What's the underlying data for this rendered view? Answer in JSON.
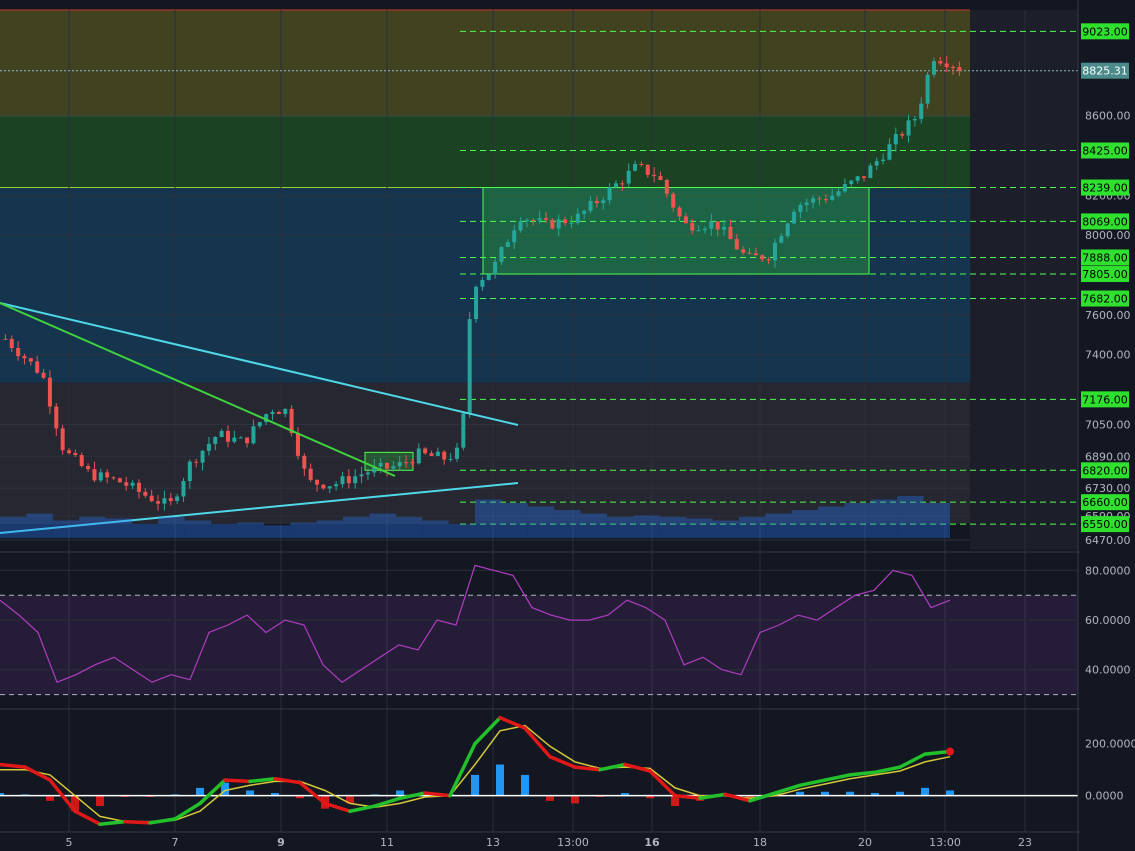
{
  "chart_data": [
    {
      "type": "candlestick",
      "panel": "price",
      "x_labels": [
        "5",
        "7",
        "9",
        "11",
        "13",
        "13:00",
        "16",
        "18",
        "20",
        "13:00",
        "23"
      ],
      "x_labels_bold": [
        "9",
        "16"
      ],
      "ylim": [
        6420,
        9130
      ],
      "y_ticks": [
        8600,
        8200,
        8000,
        7600,
        7400,
        7050,
        6890,
        6730,
        6590,
        6470
      ],
      "current_price": "8825.31",
      "level_tags": [
        "9023.00",
        "8425.00",
        "8239.00",
        "8069.00",
        "7888.00",
        "7805.00",
        "7682.00",
        "7176.00",
        "6820.00",
        "6660.00",
        "6550.00"
      ],
      "level_values": [
        9023,
        8425,
        8239,
        8069,
        7888,
        7805,
        7682,
        7176,
        6820,
        6660,
        6550
      ],
      "zones": [
        {
          "from": 8600,
          "to": 9130,
          "color": "#4a4a1e"
        },
        {
          "from": 8239,
          "to": 8600,
          "color": "#1f4a24"
        },
        {
          "from": 7260,
          "to": 8239,
          "color": "#163a55"
        },
        {
          "from": 6550,
          "to": 7260,
          "color": "#2a2a33"
        }
      ],
      "consolidation_box": {
        "from": 7805,
        "to": 8239
      },
      "small_box": {
        "from": 6820,
        "to": 6910
      },
      "key_points": [
        {
          "day": 3.8,
          "price": 7480
        },
        {
          "day": 4.5,
          "price": 7300
        },
        {
          "day": 4.9,
          "price": 6920
        },
        {
          "day": 5.4,
          "price": 6800
        },
        {
          "day": 6.0,
          "price": 6760
        },
        {
          "day": 6.4,
          "price": 6700
        },
        {
          "day": 6.9,
          "price": 6640
        },
        {
          "day": 7.3,
          "price": 6860
        },
        {
          "day": 7.8,
          "price": 7000
        },
        {
          "day": 8.3,
          "price": 6960
        },
        {
          "day": 8.8,
          "price": 7130
        },
        {
          "day": 9.1,
          "price": 7120
        },
        {
          "day": 9.5,
          "price": 6760
        },
        {
          "day": 10.0,
          "price": 6750
        },
        {
          "day": 10.7,
          "price": 6820
        },
        {
          "day": 11.2,
          "price": 6840
        },
        {
          "day": 11.6,
          "price": 6900
        },
        {
          "day": 12.1,
          "price": 6880
        },
        {
          "day": 12.4,
          "price": 6920
        },
        {
          "day": 12.6,
          "price": 7750
        },
        {
          "day": 13.0,
          "price": 7830
        },
        {
          "day": 13.5,
          "price": 8100
        },
        {
          "day": 14.0,
          "price": 8050
        },
        {
          "day": 14.6,
          "price": 8090
        },
        {
          "day": 15.0,
          "price": 8180
        },
        {
          "day": 15.7,
          "price": 8340
        },
        {
          "day": 16.1,
          "price": 8300
        },
        {
          "day": 16.6,
          "price": 8050
        },
        {
          "day": 17.2,
          "price": 8060
        },
        {
          "day": 17.8,
          "price": 7880
        },
        {
          "day": 18.2,
          "price": 7900
        },
        {
          "day": 18.7,
          "price": 8150
        },
        {
          "day": 19.4,
          "price": 8200
        },
        {
          "day": 20.0,
          "price": 8300
        },
        {
          "day": 20.6,
          "price": 8480
        },
        {
          "day": 21.0,
          "price": 8600
        },
        {
          "day": 21.3,
          "price": 8900
        },
        {
          "day": 21.6,
          "price": 8870
        },
        {
          "day": 21.9,
          "price": 8825
        }
      ],
      "volume_levels": [
        0.3,
        0.35,
        0.25,
        0.3,
        0.28,
        0.2,
        0.3,
        0.25,
        0.2,
        0.22,
        0.18,
        0.22,
        0.25,
        0.3,
        0.35,
        0.3,
        0.25,
        0.2,
        0.55,
        0.5,
        0.45,
        0.4,
        0.35,
        0.3,
        0.32,
        0.3,
        0.28,
        0.25,
        0.3,
        0.35,
        0.4,
        0.45,
        0.5,
        0.55,
        0.6,
        0.5
      ]
    },
    {
      "type": "line",
      "panel": "rsi",
      "ylim": [
        25,
        87
      ],
      "y_ticks": [
        "80.0000",
        "60.0000",
        "40.0000"
      ],
      "y_tick_values": [
        80,
        60,
        40
      ],
      "bands": [
        70,
        30
      ],
      "values": [
        68,
        62,
        55,
        35,
        38,
        42,
        45,
        40,
        35,
        38,
        36,
        55,
        58,
        62,
        55,
        60,
        58,
        42,
        35,
        40,
        45,
        50,
        48,
        60,
        58,
        82,
        80,
        78,
        65,
        62,
        60,
        60,
        62,
        68,
        65,
        60,
        42,
        45,
        40,
        38,
        55,
        58,
        62,
        60,
        65,
        70,
        72,
        80,
        78,
        65,
        68
      ]
    },
    {
      "type": "line",
      "panel": "macd",
      "ylim": [
        -140,
        330
      ],
      "y_ticks": [
        "200.0000",
        "0.0000"
      ],
      "y_tick_values": [
        200,
        0
      ],
      "macd": [
        120,
        110,
        60,
        -60,
        -110,
        -100,
        -105,
        -90,
        -30,
        60,
        55,
        65,
        50,
        -30,
        -60,
        -40,
        -10,
        10,
        0,
        200,
        300,
        260,
        150,
        110,
        100,
        120,
        95,
        0,
        -10,
        5,
        -20,
        10,
        40,
        60,
        80,
        90,
        110,
        160,
        170
      ],
      "signal": [
        100,
        100,
        80,
        0,
        -80,
        -100,
        -100,
        -95,
        -60,
        20,
        40,
        55,
        55,
        20,
        -30,
        -45,
        -30,
        -5,
        0,
        120,
        250,
        270,
        190,
        130,
        105,
        110,
        105,
        30,
        0,
        0,
        -10,
        0,
        25,
        45,
        65,
        80,
        95,
        130,
        150
      ],
      "histogram": [
        10,
        5,
        -20,
        -60,
        -40,
        -5,
        -5,
        5,
        30,
        50,
        20,
        10,
        -10,
        -50,
        -30,
        5,
        20,
        15,
        5,
        80,
        120,
        80,
        -20,
        -30,
        -5,
        10,
        -10,
        -40,
        -20,
        5,
        -10,
        10,
        15,
        15,
        15,
        10,
        15,
        30,
        20
      ]
    }
  ]
}
